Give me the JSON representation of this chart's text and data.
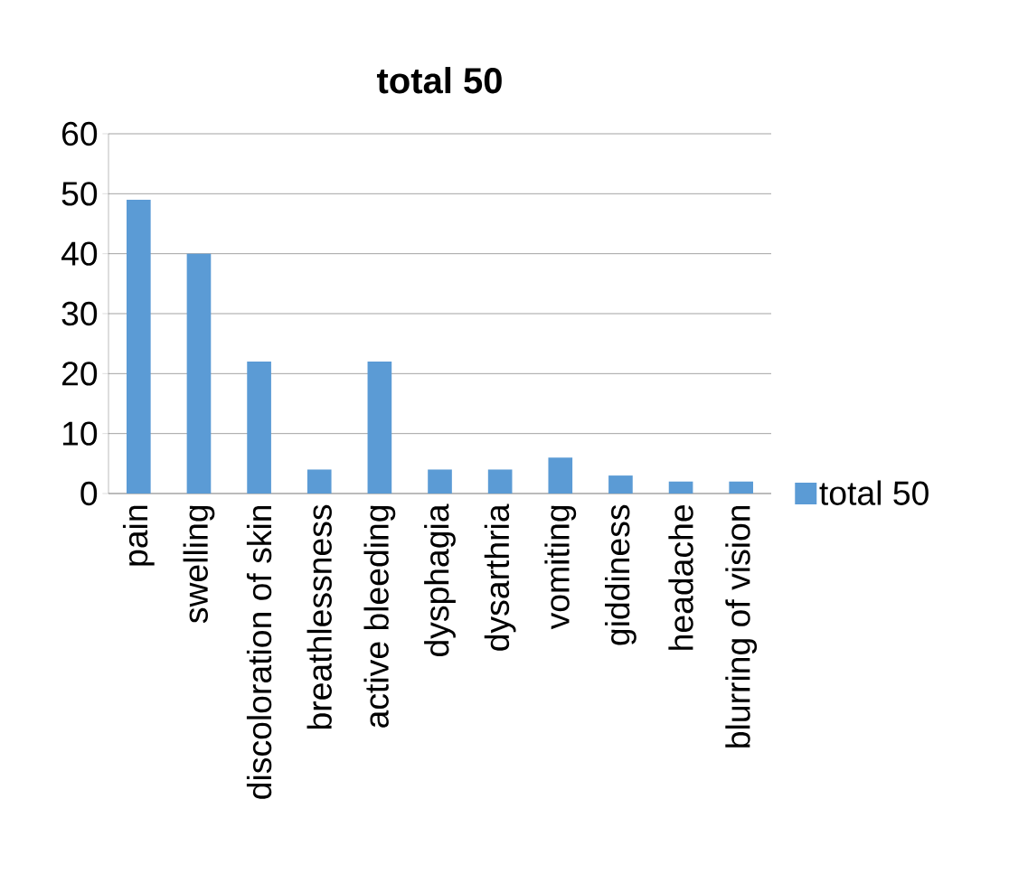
{
  "chart_data": {
    "type": "bar",
    "title": "total 50",
    "categories": [
      "pain",
      "swelling",
      "discoloration of skin",
      "breathlessness",
      "active bleeding",
      "dysphagia",
      "dysarthria",
      "vomiting",
      "giddiness",
      "headache",
      "blurring of vision"
    ],
    "series": [
      {
        "name": "total 50",
        "color": "#5b9bd5",
        "values": [
          49,
          40,
          22,
          4,
          22,
          4,
          4,
          6,
          3,
          2,
          2
        ]
      }
    ],
    "ylim": [
      0,
      60
    ],
    "yticks": [
      0,
      10,
      20,
      30,
      40,
      50,
      60
    ],
    "grid": "y",
    "legend": "right"
  }
}
